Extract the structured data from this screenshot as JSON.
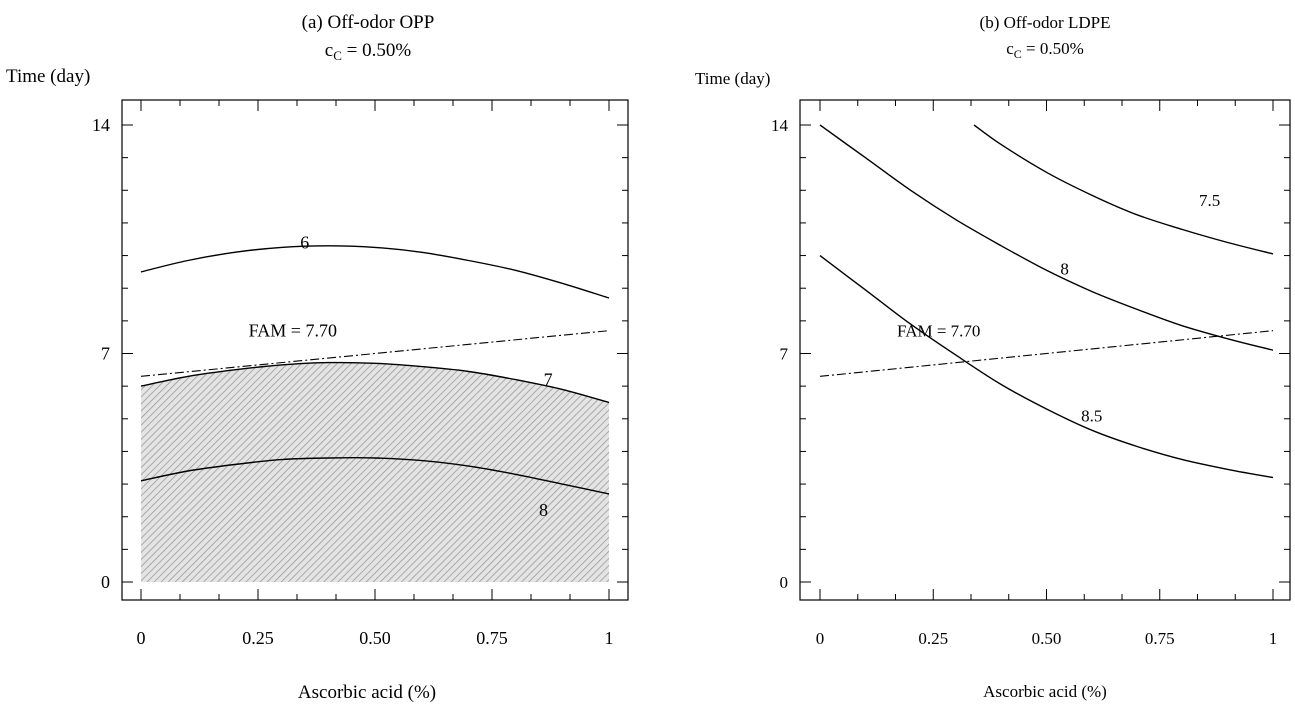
{
  "chart_data": [
    {
      "type": "line",
      "title": "(a) Off-odor OPP",
      "subtitle_base": "c",
      "subtitle_sub": "C",
      "subtitle_rest": " = 0.50%",
      "xlabel": "Ascorbic acid (%)",
      "ylabel": "Time (day)",
      "xlim": [
        0,
        1
      ],
      "ylim": [
        0,
        14
      ],
      "xticks": [
        {
          "value": 0,
          "label": "0"
        },
        {
          "value": 0.25,
          "label": "0.25"
        },
        {
          "value": 0.5,
          "label": "0.50"
        },
        {
          "value": 0.75,
          "label": "0.75"
        },
        {
          "value": 1,
          "label": "1"
        }
      ],
      "yticks": [
        {
          "value": 0,
          "label": "0"
        },
        {
          "value": 7,
          "label": "7"
        },
        {
          "value": 14,
          "label": "14"
        }
      ],
      "grid": false,
      "series": [
        {
          "name": "6",
          "label_at": [
            0.35,
            10.4
          ],
          "x": [
            0,
            0.1,
            0.2,
            0.3,
            0.4,
            0.5,
            0.6,
            0.7,
            0.8,
            0.9,
            1.0
          ],
          "y": [
            9.5,
            9.85,
            10.1,
            10.25,
            10.3,
            10.25,
            10.1,
            9.85,
            9.55,
            9.15,
            8.7
          ]
        },
        {
          "name": "7",
          "label_at": [
            0.87,
            6.2
          ],
          "x": [
            0,
            0.1,
            0.2,
            0.3,
            0.4,
            0.5,
            0.6,
            0.7,
            0.8,
            0.9,
            1.0
          ],
          "y": [
            6.0,
            6.3,
            6.5,
            6.65,
            6.72,
            6.7,
            6.6,
            6.45,
            6.2,
            5.9,
            5.5
          ]
        },
        {
          "name": "8",
          "label_at": [
            0.86,
            2.2
          ],
          "x": [
            0,
            0.1,
            0.2,
            0.3,
            0.4,
            0.5,
            0.6,
            0.7,
            0.8,
            0.9,
            1.0
          ],
          "y": [
            3.1,
            3.4,
            3.6,
            3.75,
            3.8,
            3.8,
            3.72,
            3.55,
            3.3,
            3.0,
            2.7
          ]
        }
      ],
      "fam_line": {
        "label": "FAM = 7.70",
        "label_at": [
          0.23,
          7.7
        ],
        "x": [
          0,
          1
        ],
        "y": [
          6.3,
          7.7
        ]
      },
      "shaded_region": {
        "description_hidden": true,
        "upper_series": "7",
        "hatched": true
      }
    },
    {
      "type": "line",
      "title": "(b) Off-odor LDPE",
      "subtitle_base": "c",
      "subtitle_sub": "C",
      "subtitle_rest": " = 0.50%",
      "xlabel": "Ascorbic acid (%)",
      "ylabel": "Time (day)",
      "xlim": [
        0,
        1
      ],
      "ylim": [
        0,
        14
      ],
      "xticks": [
        {
          "value": 0,
          "label": "0"
        },
        {
          "value": 0.25,
          "label": "0.25"
        },
        {
          "value": 0.5,
          "label": "0.50"
        },
        {
          "value": 0.75,
          "label": "0.75"
        },
        {
          "value": 1,
          "label": "1"
        }
      ],
      "yticks": [
        {
          "value": 0,
          "label": "0"
        },
        {
          "value": 7,
          "label": "7"
        },
        {
          "value": 14,
          "label": "14"
        }
      ],
      "grid": false,
      "series": [
        {
          "name": "7.5",
          "label_at": [
            0.86,
            11.7
          ],
          "x": [
            0.34,
            0.4,
            0.5,
            0.6,
            0.7,
            0.8,
            0.9,
            1.0
          ],
          "y": [
            14.0,
            13.4,
            12.55,
            11.85,
            11.25,
            10.8,
            10.4,
            10.05
          ]
        },
        {
          "name": "8",
          "label_at": [
            0.54,
            9.6
          ],
          "x": [
            0,
            0.1,
            0.2,
            0.3,
            0.4,
            0.5,
            0.6,
            0.7,
            0.8,
            0.9,
            1.0
          ],
          "y": [
            14.0,
            13.0,
            12.0,
            11.1,
            10.3,
            9.55,
            8.9,
            8.35,
            7.85,
            7.45,
            7.1
          ]
        },
        {
          "name": "8.5",
          "label_at": [
            0.6,
            5.1
          ],
          "x": [
            0,
            0.1,
            0.2,
            0.3,
            0.4,
            0.5,
            0.6,
            0.7,
            0.8,
            0.9,
            1.0
          ],
          "y": [
            10.0,
            8.95,
            7.9,
            6.95,
            6.05,
            5.3,
            4.65,
            4.15,
            3.75,
            3.45,
            3.2
          ]
        }
      ],
      "fam_line": {
        "label": "FAM = 7.70",
        "label_at": [
          0.17,
          7.7
        ],
        "x": [
          0,
          1
        ],
        "y": [
          6.3,
          7.7
        ]
      }
    }
  ]
}
